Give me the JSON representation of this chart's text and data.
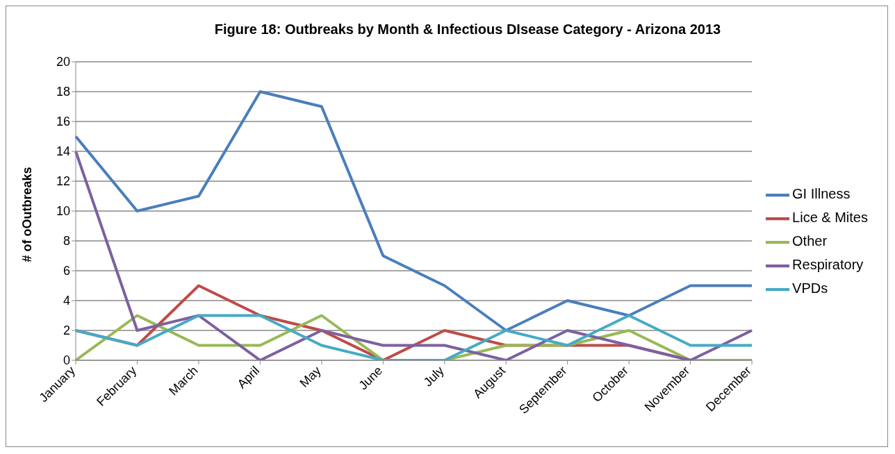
{
  "chart_data": {
    "type": "line",
    "title": "Figure 18: Outbreaks by Month & Infectious DIsease Category - Arizona 2013",
    "ylabel": "# of oOutbreaks",
    "categories": [
      "January",
      "February",
      "March",
      "April",
      "May",
      "June",
      "July",
      "August",
      "September",
      "October",
      "November",
      "December"
    ],
    "series": [
      {
        "name": "GI Illness",
        "color": "#4a7ebb",
        "values": [
          15,
          10,
          11,
          18,
          17,
          7,
          5,
          2,
          4,
          3,
          5,
          5
        ]
      },
      {
        "name": "Lice & Mites",
        "color": "#be4b48",
        "values": [
          2,
          1,
          5,
          3,
          2,
          0,
          2,
          1,
          1,
          1,
          0,
          0
        ]
      },
      {
        "name": "Other",
        "color": "#98b954",
        "values": [
          0,
          3,
          1,
          1,
          3,
          0,
          0,
          1,
          1,
          2,
          0,
          0
        ]
      },
      {
        "name": "Respiratory",
        "color": "#7d60a0",
        "values": [
          14,
          2,
          3,
          0,
          2,
          1,
          1,
          0,
          2,
          1,
          0,
          2
        ]
      },
      {
        "name": "VPDs",
        "color": "#46aac5",
        "values": [
          2,
          1,
          3,
          3,
          1,
          0,
          0,
          2,
          1,
          3,
          1,
          1
        ]
      }
    ],
    "ylim": [
      0,
      20
    ],
    "yticks": [
      0,
      2,
      4,
      6,
      8,
      10,
      12,
      14,
      16,
      18,
      20
    ],
    "grid": "y",
    "legend": "right",
    "marker": "none",
    "line_style": "solid"
  }
}
